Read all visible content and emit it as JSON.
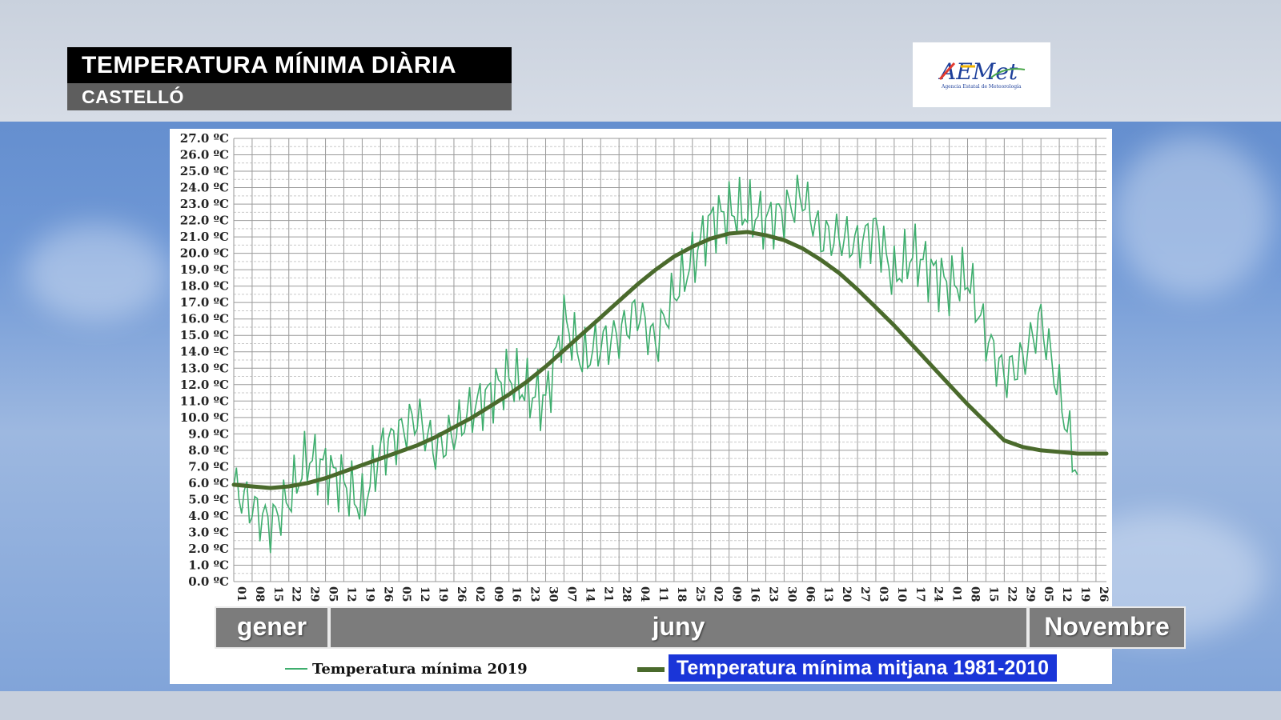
{
  "header": {
    "title": "TEMPERATURA MÍNIMA DIÀRIA",
    "subtitle": "CASTELLÓ"
  },
  "logo": {
    "name": "AEMet",
    "tagline": "Agencia Estatal de Meteorología",
    "icon": "aemet-logo"
  },
  "months": [
    {
      "label": "gener"
    },
    {
      "label": "juny"
    },
    {
      "label": "Novembre"
    }
  ],
  "legend": {
    "series_2019": "Temperatura mínima 2019",
    "series_avg": "Temperatura mínima mitjana 1981-2010"
  },
  "colors": {
    "series_2019": "#3fae6e",
    "series_avg": "#4a6a2c",
    "legend_avg_bg": "#1a35d8"
  },
  "chart_data": {
    "type": "line",
    "title": "",
    "xlabel": "",
    "ylabel": "",
    "ylim": [
      0,
      27
    ],
    "y_ticks": [
      "0.0 ºC",
      "1.0 ºC",
      "2.0 ºC",
      "3.0 ºC",
      "4.0 ºC",
      "5.0 ºC",
      "6.0 ºC",
      "7.0 ºC",
      "8.0 ºC",
      "9.0 ºC",
      "10.0 ºC",
      "11.0 ºC",
      "12.0 ºC",
      "13.0 ºC",
      "14.0 ºC",
      "15.0 ºC",
      "16.0 ºC",
      "17.0 ºC",
      "18.0 ºC",
      "19.0 ºC",
      "20.0 ºC",
      "21.0 ºC",
      "22.0 ºC",
      "23.0 ºC",
      "24.0 ºC",
      "25.0 ºC",
      "26.0 ºC",
      "27.0 ºC"
    ],
    "x_ticks": [
      "01",
      "08",
      "15",
      "22",
      "29",
      "05",
      "12",
      "19",
      "26",
      "05",
      "12",
      "19",
      "26",
      "02",
      "09",
      "16",
      "23",
      "30",
      "07",
      "14",
      "21",
      "28",
      "04",
      "11",
      "18",
      "25",
      "02",
      "09",
      "16",
      "23",
      "30",
      "06",
      "13",
      "20",
      "27",
      "03",
      "10",
      "17",
      "24",
      "01",
      "08",
      "15",
      "22",
      "29",
      "05",
      "12",
      "19",
      "26"
    ],
    "grid": true,
    "legend_position": "bottom",
    "series": [
      {
        "name": "Temperatura mínima 2019",
        "x": [
          "01-01",
          "01-08",
          "01-15",
          "01-22",
          "01-29",
          "02-05",
          "02-12",
          "02-19",
          "02-26",
          "03-05",
          "03-12",
          "03-19",
          "03-26",
          "04-02",
          "04-09",
          "04-16",
          "04-23",
          "04-30",
          "05-07",
          "05-14",
          "05-21",
          "05-28",
          "06-04",
          "06-11",
          "06-18",
          "06-25",
          "07-02",
          "07-09",
          "07-16",
          "07-23",
          "07-30",
          "08-06",
          "08-13",
          "08-20",
          "08-27",
          "09-03",
          "09-10",
          "09-17",
          "09-24",
          "10-01",
          "10-08",
          "10-15",
          "10-22",
          "10-29",
          "11-05",
          "11-12",
          "11-19"
        ],
        "values": [
          5.8,
          4.5,
          3.5,
          5.0,
          7.5,
          7.0,
          6.0,
          4.5,
          8.0,
          9.0,
          10.0,
          8.0,
          9.0,
          10.5,
          11.5,
          12.5,
          11.5,
          11.0,
          16.0,
          13.5,
          14.5,
          15.0,
          16.5,
          14.5,
          17.5,
          19.5,
          22.0,
          22.5,
          22.5,
          22.0,
          22.5,
          23.5,
          21.0,
          21.0,
          20.5,
          21.5,
          18.5,
          20.0,
          19.0,
          18.0,
          18.5,
          15.0,
          12.5,
          13.5,
          16.0,
          11.5,
          6.5
        ]
      },
      {
        "name": "Temperatura mínima mitjana 1981-2010",
        "x": [
          "01-01",
          "01-08",
          "01-15",
          "01-22",
          "01-29",
          "02-05",
          "02-12",
          "02-19",
          "02-26",
          "03-05",
          "03-12",
          "03-19",
          "03-26",
          "04-02",
          "04-09",
          "04-16",
          "04-23",
          "04-30",
          "05-07",
          "05-14",
          "05-21",
          "05-28",
          "06-04",
          "06-11",
          "06-18",
          "06-25",
          "07-02",
          "07-09",
          "07-16",
          "07-23",
          "07-30",
          "08-06",
          "08-13",
          "08-20",
          "08-27",
          "09-03",
          "09-10",
          "09-17",
          "09-24",
          "10-01",
          "10-08",
          "10-15",
          "10-22",
          "10-29",
          "11-05",
          "11-12",
          "11-19",
          "11-26",
          "11-30"
        ],
        "values": [
          5.9,
          5.8,
          5.7,
          5.8,
          6.0,
          6.3,
          6.7,
          7.1,
          7.5,
          7.9,
          8.3,
          8.8,
          9.4,
          10.0,
          10.7,
          11.4,
          12.2,
          13.1,
          14.1,
          15.1,
          16.1,
          17.1,
          18.1,
          19.0,
          19.8,
          20.4,
          20.9,
          21.2,
          21.3,
          21.1,
          20.8,
          20.3,
          19.6,
          18.8,
          17.8,
          16.7,
          15.6,
          14.4,
          13.2,
          12.0,
          10.8,
          9.7,
          8.6,
          8.2,
          8.0,
          7.9,
          7.8,
          7.8,
          7.8
        ]
      }
    ]
  }
}
